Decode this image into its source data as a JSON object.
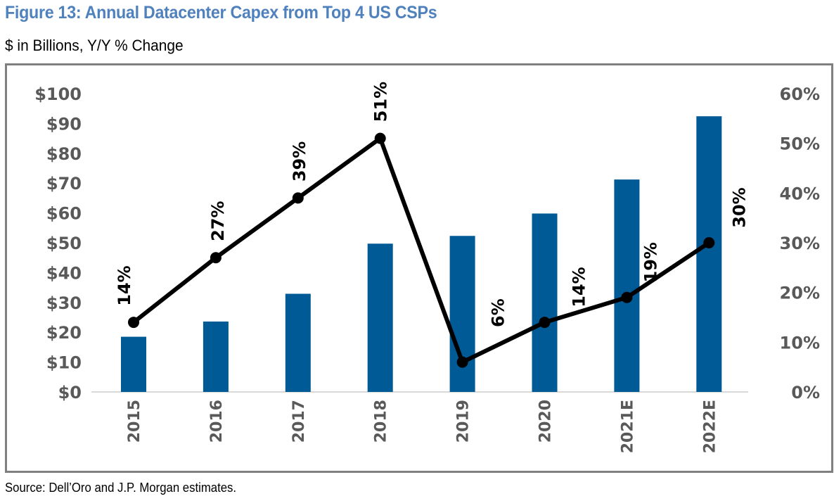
{
  "figure": {
    "title": "Figure 13: Annual Datacenter Capex from Top 4 US CSPs",
    "subtitle": "$ in Billions, Y/Y % Change",
    "source": "Source: Dell’Oro and J.P. Morgan estimates."
  },
  "chart_data": {
    "type": "bar",
    "title": "Figure 13: Annual Datacenter Capex from Top 4 US CSPs",
    "subtitle": "$ in Billions, Y/Y % Change",
    "xlabel": "",
    "ylabel": "",
    "categories": [
      "2015",
      "2016",
      "2017",
      "2018",
      "2019",
      "2020",
      "2021E",
      "2022E"
    ],
    "series": [
      {
        "name": "Datacenter Capex ($B)",
        "type": "bar",
        "axis": "left",
        "color": "#005a96",
        "values": [
          18.5,
          23.6,
          32.9,
          49.7,
          52.3,
          59.8,
          71.2,
          92.4
        ]
      },
      {
        "name": "Y/Y % Change",
        "type": "line",
        "axis": "right",
        "color": "#000000",
        "values": [
          14,
          27,
          39,
          51,
          6,
          14,
          19,
          30
        ],
        "data_labels": [
          "14%",
          "27%",
          "39%",
          "51%",
          "6%",
          "14%",
          "19%",
          "30%"
        ]
      }
    ],
    "left_axis": {
      "ylim": [
        0,
        100
      ],
      "ticks": [
        0,
        10,
        20,
        30,
        40,
        50,
        60,
        70,
        80,
        90,
        100
      ],
      "tick_labels": [
        "$0",
        "$10",
        "$20",
        "$30",
        "$40",
        "$50",
        "$60",
        "$70",
        "$80",
        "$90",
        "$100"
      ]
    },
    "right_axis": {
      "ylim": [
        0,
        60
      ],
      "ticks": [
        0,
        10,
        20,
        30,
        40,
        50,
        60
      ],
      "tick_labels": [
        "0%",
        "10%",
        "20%",
        "30%",
        "40%",
        "50%",
        "60%"
      ]
    },
    "grid": false,
    "legend": "none"
  }
}
